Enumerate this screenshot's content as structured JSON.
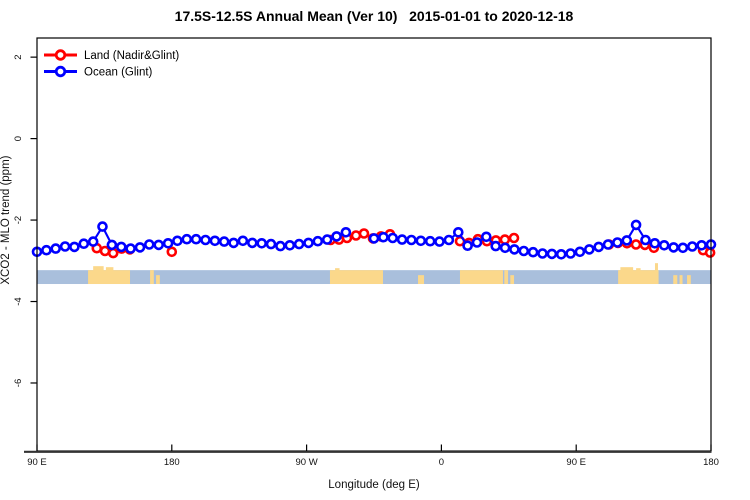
{
  "title": "17.5S-12.5S Annual Mean (Ver 10)   2015-01-01 to 2020-12-18",
  "chart_data": {
    "type": "line",
    "title": "17.5S-12.5S Annual Mean (Ver 10)   2015-01-01 to 2020-12-18",
    "xlabel": "Longitude (deg E)",
    "ylabel": "XCO2 - MLO trend (ppm)",
    "xlim": [
      90,
      540
    ],
    "ylim": [
      -7.67,
      2.47
    ],
    "grid": false,
    "legend_position": "top-left",
    "x_ticks": [
      {
        "v": 90,
        "label": "90 E"
      },
      {
        "v": 180,
        "label": "180"
      },
      {
        "v": 270,
        "label": "90 W"
      },
      {
        "v": 360,
        "label": "0"
      },
      {
        "v": 450,
        "label": "90 E"
      },
      {
        "v": 540,
        "label": "180"
      }
    ],
    "y_ticks": [
      {
        "v": 2,
        "label": "2"
      },
      {
        "v": 0,
        "label": "0"
      },
      {
        "v": -2,
        "label": "-2"
      },
      {
        "v": -4,
        "label": "-4"
      },
      {
        "v": -6,
        "label": "-6"
      }
    ],
    "legend": [
      {
        "name": "Land (Nadir&Glint)",
        "color": "#ff0000"
      },
      {
        "name": "Ocean (Glint)",
        "color": "#0000ff"
      }
    ],
    "series": [
      {
        "name": "Land (Nadir&Glint)",
        "color": "#ff0000",
        "segments": [
          [
            [
              129.9,
              -2.69
            ],
            [
              135.4,
              -2.76
            ],
            [
              140.9,
              -2.81
            ],
            [
              146.5,
              -2.7
            ],
            [
              152.0,
              -2.72
            ]
          ],
          [
            [
              180.0,
              -2.78
            ]
          ],
          [
            [
              286.0,
              -2.49
            ],
            [
              291.6,
              -2.48
            ],
            [
              297.0,
              -2.44
            ],
            [
              303.0,
              -2.38
            ],
            [
              308.3,
              -2.33
            ],
            [
              314.3,
              -2.45
            ],
            [
              319.7,
              -2.4
            ],
            [
              325.7,
              -2.35
            ]
          ],
          [
            [
              372.4,
              -2.52
            ],
            [
              378.4,
              -2.56
            ],
            [
              384.4,
              -2.47
            ],
            [
              390.4,
              -2.52
            ],
            [
              396.4,
              -2.5
            ],
            [
              402.4,
              -2.48
            ],
            [
              408.5,
              -2.44
            ]
          ],
          [
            [
              471.9,
              -2.6
            ],
            [
              477.9,
              -2.56
            ],
            [
              483.9,
              -2.57
            ],
            [
              489.9,
              -2.6
            ],
            [
              495.9,
              -2.61
            ],
            [
              501.9,
              -2.68
            ]
          ],
          [
            [
              534.7,
              -2.74
            ],
            [
              539.4,
              -2.8
            ]
          ]
        ]
      },
      {
        "name": "Ocean (Glint)",
        "color": "#0000ff",
        "segments": [
          [
            [
              90,
              -2.78
            ],
            [
              96.25,
              -2.74
            ],
            [
              102.5,
              -2.7
            ],
            [
              108.75,
              -2.65
            ],
            [
              115,
              -2.66
            ],
            [
              121.25,
              -2.58
            ],
            [
              127.5,
              -2.53
            ],
            [
              133.75,
              -2.16
            ],
            [
              140,
              -2.61
            ],
            [
              146.25,
              -2.66
            ],
            [
              152.5,
              -2.7
            ],
            [
              158.75,
              -2.67
            ],
            [
              165,
              -2.6
            ],
            [
              171.25,
              -2.61
            ],
            [
              177.5,
              -2.57
            ],
            [
              183.75,
              -2.51
            ],
            [
              190,
              -2.47
            ],
            [
              196.25,
              -2.47
            ],
            [
              202.5,
              -2.49
            ],
            [
              208.75,
              -2.51
            ],
            [
              215,
              -2.53
            ],
            [
              221.25,
              -2.56
            ],
            [
              227.5,
              -2.51
            ],
            [
              233.75,
              -2.56
            ],
            [
              240,
              -2.57
            ],
            [
              246.25,
              -2.59
            ],
            [
              252.5,
              -2.64
            ],
            [
              258.75,
              -2.62
            ],
            [
              265,
              -2.59
            ],
            [
              271.25,
              -2.56
            ],
            [
              277.5,
              -2.52
            ],
            [
              283.75,
              -2.48
            ],
            [
              290,
              -2.4
            ],
            [
              296.25,
              -2.3
            ]
          ],
          [
            [
              315,
              -2.45
            ],
            [
              321.25,
              -2.42
            ],
            [
              327.5,
              -2.44
            ],
            [
              333.75,
              -2.48
            ],
            [
              340,
              -2.49
            ],
            [
              346.25,
              -2.51
            ],
            [
              352.5,
              -2.52
            ],
            [
              358.75,
              -2.53
            ],
            [
              365,
              -2.49
            ],
            [
              371.25,
              -2.3
            ],
            [
              377.5,
              -2.63
            ],
            [
              383.75,
              -2.55
            ],
            [
              390,
              -2.41
            ],
            [
              396.25,
              -2.64
            ],
            [
              402.5,
              -2.68
            ],
            [
              408.75,
              -2.72
            ],
            [
              415,
              -2.76
            ],
            [
              421.25,
              -2.79
            ],
            [
              427.5,
              -2.82
            ],
            [
              433.75,
              -2.83
            ],
            [
              440,
              -2.84
            ],
            [
              446.25,
              -2.82
            ],
            [
              452.5,
              -2.78
            ],
            [
              458.75,
              -2.72
            ],
            [
              465,
              -2.66
            ],
            [
              471.25,
              -2.6
            ],
            [
              477.5,
              -2.55
            ],
            [
              483.75,
              -2.5
            ],
            [
              490,
              -2.12
            ],
            [
              496.25,
              -2.49
            ],
            [
              502.5,
              -2.57
            ],
            [
              508.75,
              -2.62
            ],
            [
              515,
              -2.67
            ],
            [
              521.25,
              -2.68
            ],
            [
              527.5,
              -2.65
            ],
            [
              533.75,
              -2.62
            ],
            [
              540,
              -2.6
            ]
          ]
        ]
      }
    ],
    "map_strip": {
      "description": "coastline strip for 17.5S-12.5S latitude band",
      "y_top": -3.23,
      "y_bottom": -3.57,
      "ocean_color": "#a9bfdc",
      "land_color": "#fbd88b",
      "land_patches": [
        {
          "from": 124.1,
          "to": 152.1,
          "partial": false
        },
        {
          "from": 165.5,
          "to": 168.0,
          "partial": false
        },
        {
          "from": 169.5,
          "to": 172.0,
          "partial": true
        },
        {
          "from": 285.6,
          "to": 321.0,
          "partial": false
        },
        {
          "from": 344.4,
          "to": 348.4,
          "partial": true
        },
        {
          "from": 372.4,
          "to": 401.1,
          "partial": false
        },
        {
          "from": 402.0,
          "to": 404.5,
          "partial": false
        },
        {
          "from": 406.0,
          "to": 408.5,
          "partial": true
        },
        {
          "from": 478.0,
          "to": 505.0,
          "partial": false
        },
        {
          "from": 514.8,
          "to": 517.5,
          "partial": true
        },
        {
          "from": 519.0,
          "to": 521.0,
          "partial": true
        },
        {
          "from": 524.0,
          "to": 526.5,
          "partial": true
        }
      ],
      "land_bumps": [
        {
          "from": 127.5,
          "to": 134.5,
          "rise": 4
        },
        {
          "from": 136.0,
          "to": 141.0,
          "rise": 3
        },
        {
          "from": 289.0,
          "to": 292.0,
          "rise": 2
        },
        {
          "from": 479.5,
          "to": 488.0,
          "rise": 3
        },
        {
          "from": 490.0,
          "to": 493.0,
          "rise": 2
        },
        {
          "from": 502.6,
          "to": 504.6,
          "rise": 7
        }
      ]
    }
  }
}
